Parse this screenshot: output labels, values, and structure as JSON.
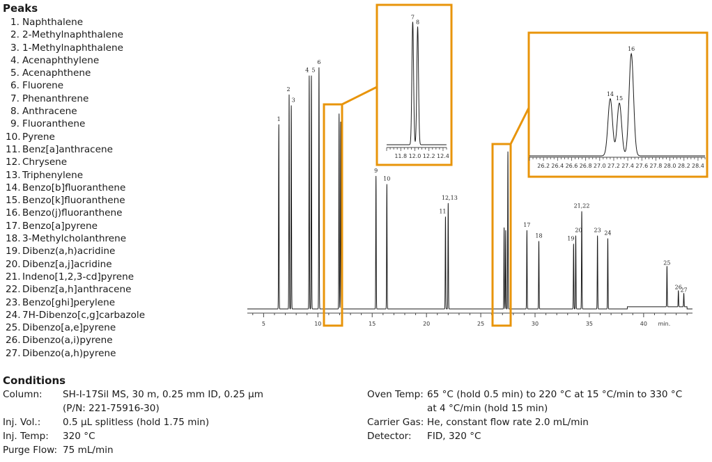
{
  "peaks": {
    "title": "Peaks",
    "items": [
      {
        "num": "1.",
        "name": "Naphthalene"
      },
      {
        "num": "2.",
        "name": "2-Methylnaphthalene"
      },
      {
        "num": "3.",
        "name": "1-Methylnaphthalene"
      },
      {
        "num": "4.",
        "name": "Acenaphthylene"
      },
      {
        "num": "5.",
        "name": "Acenaphthene"
      },
      {
        "num": "6.",
        "name": "Fluorene"
      },
      {
        "num": "7.",
        "name": "Phenanthrene"
      },
      {
        "num": "8.",
        "name": "Anthracene"
      },
      {
        "num": "9.",
        "name": "Fluoranthene"
      },
      {
        "num": "10.",
        "name": "Pyrene"
      },
      {
        "num": "11.",
        "name": "Benz[a]anthracene"
      },
      {
        "num": "12.",
        "name": "Chrysene"
      },
      {
        "num": "13.",
        "name": "Triphenylene"
      },
      {
        "num": "14.",
        "name": "Benzo[b]fluoranthene"
      },
      {
        "num": "15.",
        "name": "Benzo[k]fluoranthene"
      },
      {
        "num": "16.",
        "name": "Benzo(j)fluoranthene"
      },
      {
        "num": "17.",
        "name": "Benzo[a]pyrene"
      },
      {
        "num": "18.",
        "name": "3-Methylcholanthrene"
      },
      {
        "num": "19.",
        "name": "Dibenz(a,h)acridine"
      },
      {
        "num": "20.",
        "name": "Dibenz[a,j]acridine"
      },
      {
        "num": "21.",
        "name": "Indeno[1,2,3-cd]pyrene"
      },
      {
        "num": "22.",
        "name": "Dibenz[a,h]anthracene"
      },
      {
        "num": "23.",
        "name": "Benzo[ghi]perylene"
      },
      {
        "num": "24.",
        "name": "7H-Dibenzo[c,g]carbazole"
      },
      {
        "num": "25.",
        "name": "Dibenzo[a,e]pyrene"
      },
      {
        "num": "26.",
        "name": "Dibenzo(a,i)pyrene"
      },
      {
        "num": "27.",
        "name": "Dibenzo(a,h)pyrene"
      }
    ]
  },
  "conditions": {
    "title": "Conditions",
    "left": [
      {
        "key": "Column:",
        "value": "SH-I-17Sil MS, 30 m, 0.25 mm ID, 0.25 µm"
      },
      {
        "key": "",
        "value": "(P/N: 221-75916-30)"
      },
      {
        "key": "Inj. Vol.:",
        "value": "0.5 µL splitless (hold 1.75 min)"
      },
      {
        "key": "Inj. Temp:",
        "value": "320 °C"
      },
      {
        "key": "Purge Flow:",
        "value": "75 mL/min"
      }
    ],
    "right": [
      {
        "key": "Oven Temp:",
        "value": "65 °C (hold 0.5 min) to 220 °C at 15 °C/min to 330 °C"
      },
      {
        "key": "",
        "value": "at 4 °C/min (hold 15 min)"
      },
      {
        "key": "Carrier Gas:",
        "value": "He, constant flow rate 2.0 mL/min"
      },
      {
        "key": "Detector:",
        "value": "FID, 320 °C"
      }
    ]
  },
  "colors": {
    "highlight": "#E8940A",
    "trace": "#1a1a1a"
  },
  "chart_data": [
    {
      "type": "line",
      "xlabel": "min.",
      "xlim": [
        3.5,
        44.5
      ],
      "x_ticks": [
        5,
        10,
        15,
        20,
        25,
        30,
        35,
        40
      ],
      "ylim": [
        0,
        1
      ],
      "peaks": [
        {
          "label": "1",
          "rt": 6.4,
          "height": 0.68
        },
        {
          "label": "2",
          "rt": 7.35,
          "height": 0.79
        },
        {
          "label": "3",
          "rt": 7.55,
          "height": 0.75
        },
        {
          "label": "4",
          "rt": 9.2,
          "height": 0.86
        },
        {
          "label": "5",
          "rt": 9.4,
          "height": 0.86
        },
        {
          "label": "6",
          "rt": 10.1,
          "height": 0.89
        },
        {
          "label": "7",
          "rt": 11.95,
          "height": 0.72
        },
        {
          "label": "8",
          "rt": 12.1,
          "height": 0.69
        },
        {
          "label": "9",
          "rt": 15.35,
          "height": 0.49
        },
        {
          "label": "10",
          "rt": 16.35,
          "height": 0.46
        },
        {
          "label": "11",
          "rt": 21.75,
          "height": 0.34
        },
        {
          "label": "12,13",
          "rt": 22.0,
          "height": 0.39
        },
        {
          "label": "14",
          "rt": 27.15,
          "height": 0.3
        },
        {
          "label": "15",
          "rt": 27.3,
          "height": 0.29
        },
        {
          "label": "16",
          "rt": 27.5,
          "height": 0.58
        },
        {
          "label": "17",
          "rt": 29.25,
          "height": 0.29
        },
        {
          "label": "18",
          "rt": 30.35,
          "height": 0.25
        },
        {
          "label": "19",
          "rt": 33.55,
          "height": 0.24
        },
        {
          "label": "20",
          "rt": 33.75,
          "height": 0.27
        },
        {
          "label": "21,22",
          "rt": 34.3,
          "height": 0.36
        },
        {
          "label": "23",
          "rt": 35.75,
          "height": 0.27
        },
        {
          "label": "24",
          "rt": 36.7,
          "height": 0.26
        },
        {
          "label": "25",
          "rt": 42.15,
          "height": 0.15
        },
        {
          "label": "26",
          "rt": 43.2,
          "height": 0.06
        },
        {
          "label": "27",
          "rt": 43.7,
          "height": 0.05
        }
      ],
      "highlight_regions": [
        [
          11.6,
          12.6
        ],
        [
          26.7,
          28.1
        ]
      ]
    },
    {
      "type": "line",
      "xlim": [
        11.6,
        12.45
      ],
      "x_ticks": [
        11.8,
        12.0,
        12.2,
        12.4
      ],
      "x_tick_labels": [
        "11.8",
        "12.0",
        "12.2",
        "12.4"
      ],
      "peaks": [
        {
          "label": "7",
          "rt": 11.97,
          "height": 0.96
        },
        {
          "label": "8",
          "rt": 12.04,
          "height": 0.92
        }
      ]
    },
    {
      "type": "line",
      "xlim": [
        26.0,
        28.5
      ],
      "x_ticks": [
        26.2,
        26.4,
        26.6,
        26.8,
        27.0,
        27.2,
        27.4,
        27.6,
        27.8,
        28.0,
        28.2,
        28.4
      ],
      "x_tick_labels": [
        "26.2",
        "26.4",
        "26.6",
        "26.8",
        "27.0",
        "27.2",
        "27.4",
        "27.6",
        "27.8",
        "28.0",
        "28.2",
        "28.4"
      ],
      "peaks": [
        {
          "label": "14",
          "rt": 27.15,
          "height": 0.52
        },
        {
          "label": "15",
          "rt": 27.28,
          "height": 0.48
        },
        {
          "label": "16",
          "rt": 27.45,
          "height": 0.93
        }
      ]
    }
  ]
}
